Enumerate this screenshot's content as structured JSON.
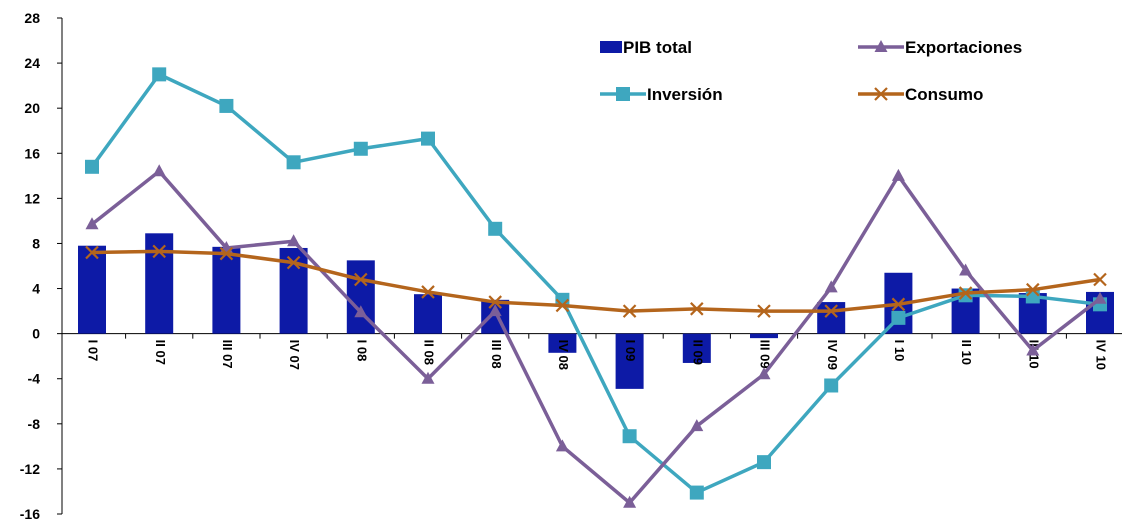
{
  "chart_data": {
    "type": "bar",
    "categories": [
      "I 07",
      "II 07",
      "III 07",
      "IV 07",
      "I 08",
      "II 08",
      "III 08",
      "IV 08",
      "I 09",
      "II 09",
      "III 09",
      "IV 09",
      "I 10",
      "II 10",
      "III 10",
      "IV 10"
    ],
    "ylim": [
      -16,
      28
    ],
    "yticks": [
      28,
      24,
      20,
      16,
      12,
      8,
      4,
      0,
      -4,
      -8,
      -12,
      -16
    ],
    "grid": false,
    "legend_position": "top-right",
    "series": [
      {
        "name": "PIB total",
        "kind": "bar",
        "color": "#0d1aa6",
        "values": [
          7.8,
          8.9,
          7.7,
          7.6,
          6.5,
          3.5,
          3.0,
          -1.7,
          -4.9,
          -2.6,
          -0.4,
          2.8,
          5.4,
          4.0,
          3.6,
          3.7
        ]
      },
      {
        "name": "Exportaciones",
        "kind": "line",
        "marker": "triangle",
        "color": "#7b5f98",
        "values": [
          9.7,
          14.4,
          7.6,
          8.2,
          1.9,
          -4.0,
          2.0,
          -10.0,
          -15.0,
          -8.2,
          -3.6,
          4.1,
          14.0,
          5.6,
          -1.5,
          3.1
        ]
      },
      {
        "name": "Inversión",
        "kind": "line",
        "marker": "square",
        "color": "#3ea7bf",
        "values": [
          14.8,
          23.0,
          20.2,
          15.2,
          16.4,
          17.3,
          9.3,
          3.0,
          -9.1,
          -14.1,
          -11.4,
          -4.6,
          1.4,
          3.4,
          3.3,
          2.6
        ]
      },
      {
        "name": "Consumo",
        "kind": "line",
        "marker": "x",
        "color": "#b4651c",
        "values": [
          7.2,
          7.3,
          7.1,
          6.3,
          4.8,
          3.7,
          2.8,
          2.5,
          2.0,
          2.2,
          2.0,
          2.0,
          2.6,
          3.6,
          3.9,
          4.8
        ]
      }
    ]
  }
}
